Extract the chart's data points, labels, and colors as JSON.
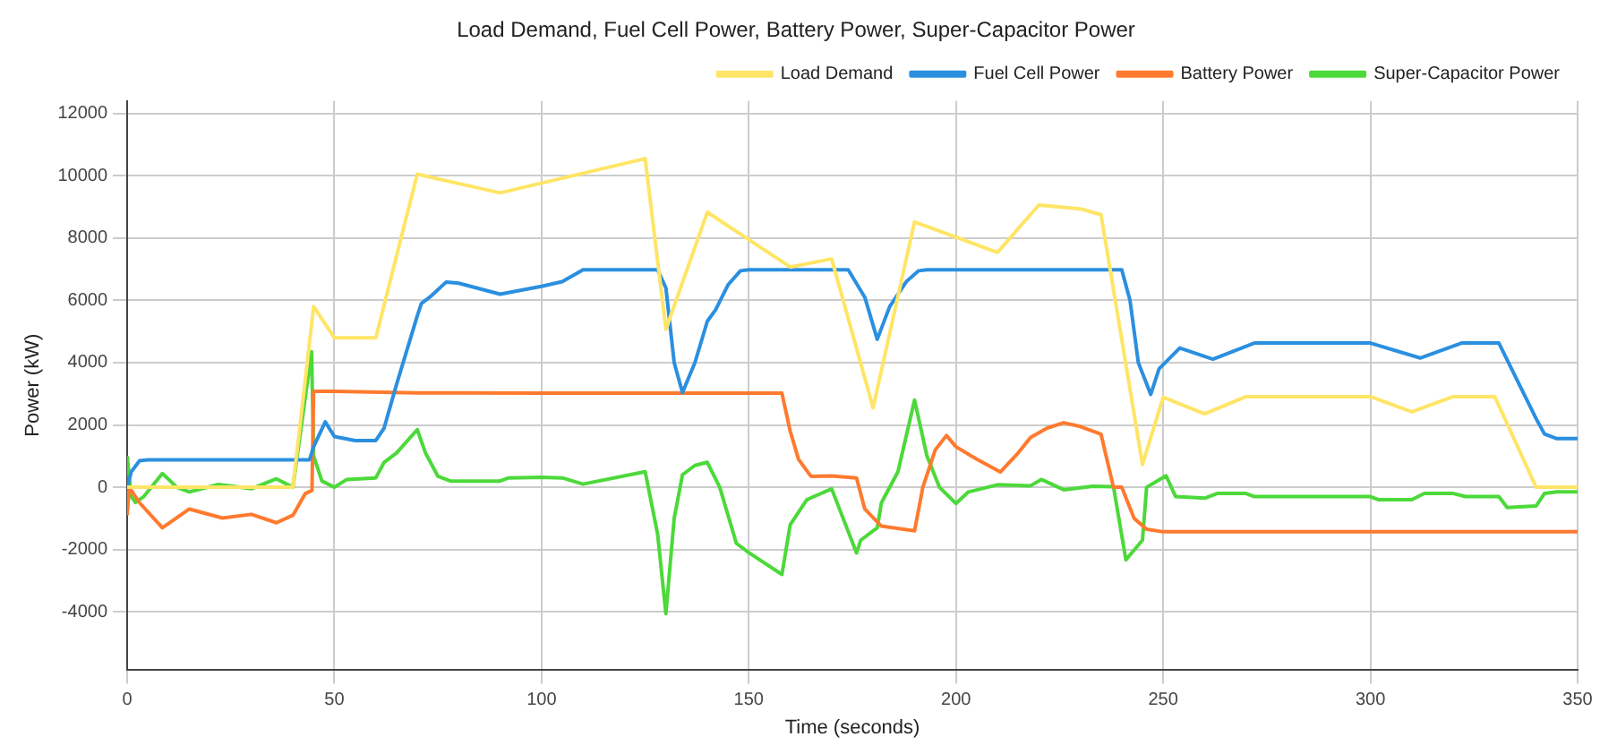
{
  "chart_data": {
    "type": "line",
    "title": "Load Demand, Fuel Cell Power, Battery Power, Super-Capacitor Power",
    "xlabel": "Time (seconds)",
    "ylabel": "Power (kW)",
    "xlim": [
      0,
      350
    ],
    "xticks": [
      0,
      50,
      100,
      150,
      200,
      250,
      300,
      350
    ],
    "ylim": [
      -5850,
      12400
    ],
    "yticks": [
      -4000,
      -2000,
      0,
      2000,
      4000,
      6000,
      8000,
      10000,
      12000
    ],
    "grid": true,
    "legend": "top right",
    "marker": "none",
    "line_style": "solid",
    "series": [
      {
        "name": "Load Demand",
        "color": "#ffe566",
        "x": [
          0,
          40,
          45,
          50,
          60,
          70,
          90,
          125,
          130,
          140,
          160,
          170,
          180,
          190,
          210,
          220,
          230,
          235,
          245,
          250,
          260,
          270,
          300,
          310,
          320,
          330,
          340,
          350
        ],
        "values": [
          0,
          0,
          5800,
          4800,
          4800,
          10050,
          9450,
          10550,
          5070,
          8830,
          7070,
          7330,
          2550,
          8520,
          7540,
          9060,
          8940,
          8750,
          730,
          2890,
          2360,
          2910,
          2910,
          2420,
          2910,
          2910,
          0,
          0
        ]
      },
      {
        "name": "Fuel Cell Power",
        "color": "#2b8fe0",
        "x": [
          0,
          1,
          3,
          5,
          44,
          45,
          47.8,
          50,
          55,
          60,
          62,
          65,
          70,
          71,
          73,
          77,
          80,
          90,
          100,
          105,
          110,
          128,
          130,
          132,
          134,
          137,
          140,
          142,
          145,
          148,
          150,
          174,
          178,
          181,
          184,
          188,
          191,
          193,
          240,
          242,
          244,
          247,
          249,
          254,
          262,
          272,
          300,
          312,
          322,
          331,
          340,
          342,
          345,
          350
        ],
        "values": [
          0,
          500,
          850,
          880,
          880,
          1300,
          2100,
          1630,
          1500,
          1500,
          1900,
          3300,
          5500,
          5900,
          6100,
          6590,
          6550,
          6200,
          6450,
          6600,
          6980,
          6980,
          6400,
          4000,
          3040,
          4000,
          5330,
          5700,
          6500,
          6950,
          6980,
          6980,
          6100,
          4750,
          5800,
          6600,
          6950,
          6980,
          6980,
          6000,
          4000,
          2980,
          3800,
          4470,
          4110,
          4630,
          4630,
          4150,
          4630,
          4630,
          2200,
          1710,
          1560,
          1560
        ]
      },
      {
        "name": "Battery Power",
        "color": "#ff7a2e",
        "x": [
          0,
          0.5,
          3,
          8.5,
          15,
          23,
          30,
          36,
          40,
          43,
          44.6,
          45,
          50,
          70,
          100,
          158,
          160,
          162,
          165,
          170,
          176,
          178,
          182,
          190,
          192,
          195,
          197.7,
          200,
          205,
          210.7,
          215,
          218,
          222,
          226,
          230,
          235,
          238,
          240,
          243,
          246,
          250,
          350
        ],
        "values": [
          -900,
          0,
          -500,
          -1300,
          -700,
          -990,
          -870,
          -1140,
          -900,
          -200,
          -100,
          3080,
          3080,
          3030,
          3020,
          3020,
          1800,
          900,
          350,
          360,
          300,
          -700,
          -1250,
          -1400,
          0,
          1200,
          1660,
          1300,
          900,
          490,
          1100,
          1600,
          1900,
          2070,
          1950,
          1700,
          0,
          0,
          -1000,
          -1350,
          -1430,
          -1430
        ]
      },
      {
        "name": "Super-Capacitor Power",
        "color": "#4cd93a",
        "x": [
          0,
          1,
          2,
          4,
          8.5,
          12,
          15,
          22,
          30,
          36,
          40,
          44.5,
          45,
          47,
          50,
          53,
          60,
          62,
          65,
          70,
          72,
          75,
          78,
          90,
          92,
          100,
          105,
          110,
          125,
          128,
          130,
          132,
          134,
          137,
          140,
          143,
          147,
          150,
          158,
          160,
          164,
          170,
          176,
          177,
          181,
          182,
          186,
          190,
          193,
          196,
          200,
          203,
          210,
          218,
          220.6,
          226,
          233,
          238,
          241,
          245,
          246,
          250.7,
          253,
          260,
          263,
          270,
          272,
          300,
          302,
          310,
          313,
          320,
          323,
          331,
          333,
          340,
          342,
          345,
          350
        ],
        "values": [
          1000,
          -300,
          -490,
          -300,
          440,
          0,
          -150,
          90,
          -50,
          270,
          0,
          4350,
          1000,
          200,
          0,
          250,
          300,
          800,
          1100,
          1850,
          1100,
          350,
          200,
          200,
          300,
          320,
          300,
          100,
          500,
          -1500,
          -4060,
          -1000,
          400,
          700,
          800,
          0,
          -1800,
          -2100,
          -2800,
          -1200,
          -400,
          -50,
          -2110,
          -1700,
          -1300,
          -500,
          500,
          2800,
          1000,
          0,
          -520,
          -150,
          80,
          50,
          250,
          -80,
          30,
          20,
          -2330,
          -1700,
          0,
          370,
          -300,
          -350,
          -200,
          -200,
          -300,
          -300,
          -400,
          -400,
          -200,
          -200,
          -300,
          -300,
          -650,
          -600,
          -200,
          -150,
          -150
        ]
      }
    ]
  }
}
